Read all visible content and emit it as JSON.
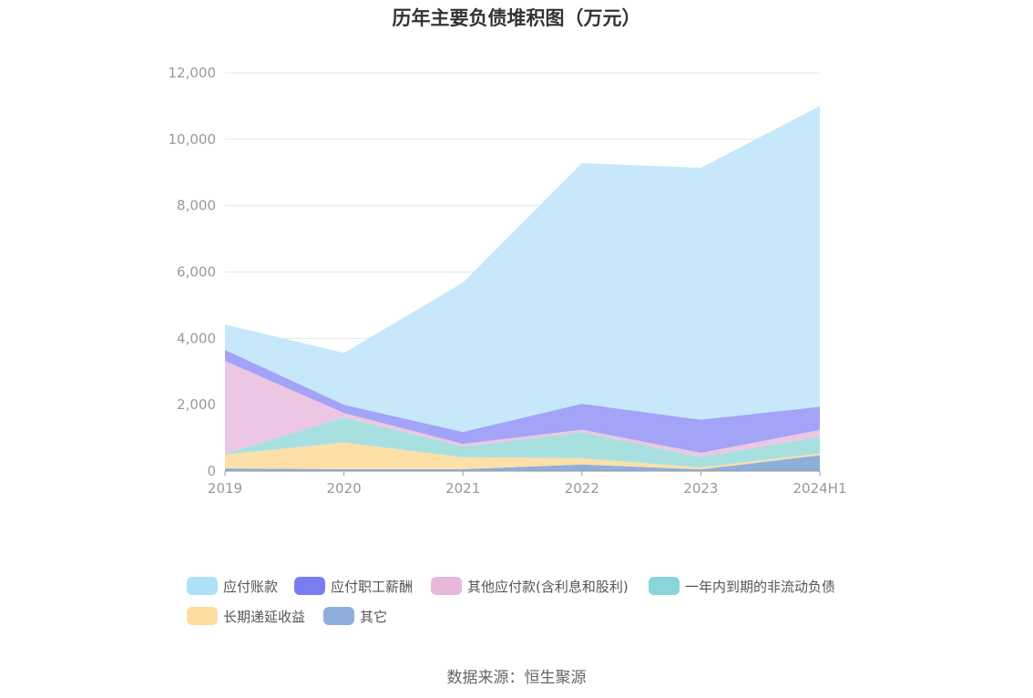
{
  "chart_data": {
    "type": "area",
    "stacked": true,
    "title": "历年主要负债堆积图（万元）",
    "categories": [
      "2019",
      "2020",
      "2021",
      "2022",
      "2023",
      "2024H1"
    ],
    "yticks": [
      "0",
      "2,000",
      "4,000",
      "6,000",
      "8,000",
      "10,000",
      "12,000"
    ],
    "ylim": [
      0,
      12000
    ],
    "grid": true,
    "legend_position": "bottom",
    "series": [
      {
        "name": "其它",
        "color": "#8eaedc",
        "values": [
          80,
          60,
          60,
          200,
          50,
          480
        ]
      },
      {
        "name": "长期递延收益",
        "color": "#fddfa8",
        "values": [
          420,
          800,
          360,
          190,
          60,
          50
        ]
      },
      {
        "name": "一年内到期的非流动负债",
        "color": "#a8e0e0",
        "values": [
          20,
          760,
          320,
          780,
          320,
          510
        ]
      },
      {
        "name": "其他应付款(含利息和股利)",
        "color": "#edc6e3",
        "values": [
          2800,
          130,
          80,
          80,
          120,
          200
        ]
      },
      {
        "name": "应付职工薪酬",
        "color": "#a3a3f8",
        "values": [
          330,
          250,
          360,
          780,
          1000,
          700
        ]
      },
      {
        "name": "应付账款",
        "color": "#c6e8fa",
        "values": [
          770,
          1560,
          4500,
          7250,
          7590,
          9060
        ]
      }
    ]
  },
  "legend": [
    {
      "label": "应付账款",
      "color": "#aee0f8"
    },
    {
      "label": "应付职工薪酬",
      "color": "#7b7cf2"
    },
    {
      "label": "其他应付款(含利息和股利)",
      "color": "#e8b8dc"
    },
    {
      "label": "一年内到期的非流动负债",
      "color": "#88d6da"
    },
    {
      "label": "长期递延收益",
      "color": "#fddc9e"
    },
    {
      "label": "其它",
      "color": "#8eaedc"
    }
  ],
  "source": "数据来源：恒生聚源"
}
